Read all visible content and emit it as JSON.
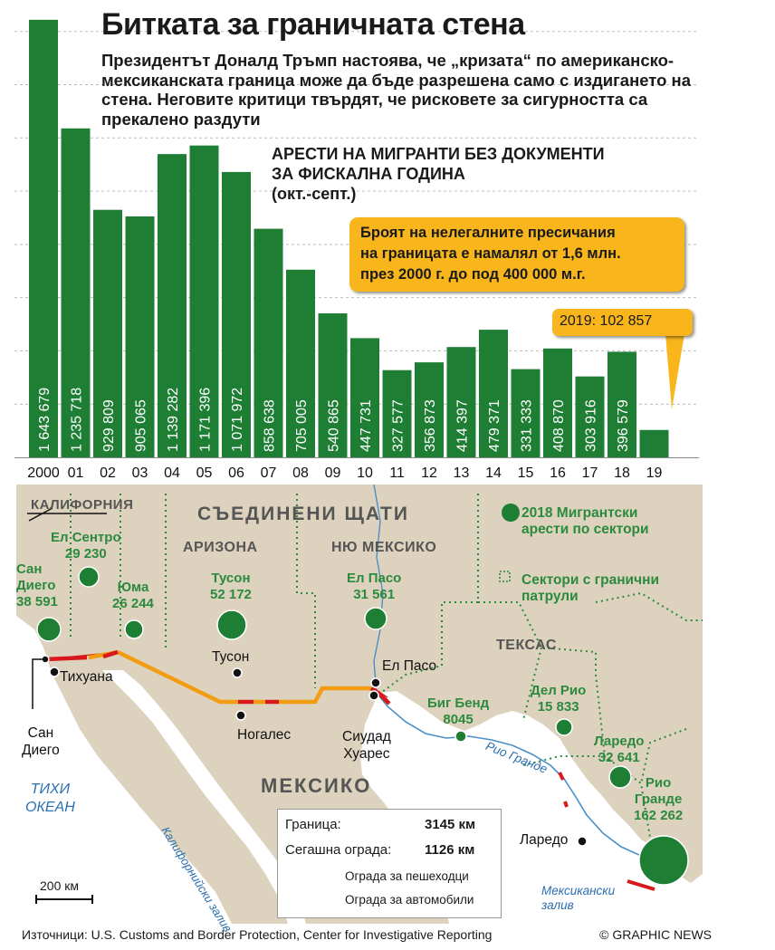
{
  "header": {
    "title": "Битката за граничната стена",
    "subtitle": "Президентът Доналд Тръмп настоява, че „кризата“ по американско-мексиканската граница може да бъде разрешена само с издигането на стена. Неговите критици твърдят, че рисковете за сигурността са прекалено раздути"
  },
  "chart_data": {
    "type": "bar",
    "title": "АРЕСТИ НА МИГРАНТИ БЕЗ ДОКУМЕНТИ ЗА ФИСКАЛНА ГОДИНА (окт.-септ.)",
    "title_lines": [
      "АРЕСТИ НА МИГРАНТИ БЕЗ ДОКУМЕНТИ",
      "ЗА ФИСКАЛНА ГОДИНА",
      "(окт.-септ.)"
    ],
    "categories": [
      "2000",
      "01",
      "02",
      "03",
      "04",
      "05",
      "06",
      "07",
      "08",
      "09",
      "10",
      "11",
      "12",
      "13",
      "14",
      "15",
      "16",
      "17",
      "18",
      "19"
    ],
    "values": [
      1643679,
      1235718,
      929809,
      905065,
      1139282,
      1171396,
      1071972,
      858638,
      705005,
      540865,
      447731,
      327577,
      356873,
      414397,
      479371,
      331333,
      408870,
      303916,
      396579,
      102857
    ],
    "value_labels": [
      "1 643 679",
      "1 235 718",
      "929 809",
      "905 065",
      "1 139 282",
      "1 171 396",
      "1 071 972",
      "858 638",
      "705 005",
      "540 865",
      "447 731",
      "327 577",
      "356 873",
      "414 397",
      "479 371",
      "331 333",
      "408 870",
      "303 916",
      "396 579",
      ""
    ],
    "ylim": [
      0,
      1650000
    ],
    "grid": true,
    "bar_color": "#1e7e34",
    "annotations": [
      "Броят на нелегалните пресичания на границата е намалял от 1,6 млн. през 2000 г. до под 400 000 м.г.",
      "2019: 102 857"
    ]
  },
  "callout": {
    "lines": [
      "Броят на нелегалните пресичания",
      "на границата е намалял от 1,6 млн.",
      "през 2000 г. до под 400 000 м.г."
    ]
  },
  "callout2": {
    "text": "2019: 102 857"
  },
  "map": {
    "regions": {
      "california": "КАЛИФОРНИЯ",
      "usa": "СЪЕДИНЕНИ ЩАТИ",
      "arizona": "АРИЗОНА",
      "new_mexico": "НЮ МЕКСИКО",
      "texas": "ТЕКСАС",
      "mexico": "МЕКСИКО",
      "pacific_line1": "ТИХИ",
      "pacific_line2": "ОКЕАН",
      "gulf_california": "Калифорнийски залив",
      "gulf_mexico_line1": "Мексикански",
      "gulf_mexico_line2": "залив",
      "rio_grande_river": "Рио Гранде"
    },
    "sectors": [
      {
        "name_lines": [
          "Ел Сентро"
        ],
        "value": "29 230"
      },
      {
        "name_lines": [
          "Сан",
          "Диего"
        ],
        "value": "38 591"
      },
      {
        "name_lines": [
          "Юма"
        ],
        "value": "26 244"
      },
      {
        "name_lines": [
          "Тусон"
        ],
        "value": "52 172"
      },
      {
        "name_lines": [
          "Ел Пасо"
        ],
        "value": "31 561"
      },
      {
        "name_lines": [
          "Биг Бенд"
        ],
        "value": "8045"
      },
      {
        "name_lines": [
          "Дел Рио"
        ],
        "value": "15 833"
      },
      {
        "name_lines": [
          "Ларедо"
        ],
        "value": "32 641"
      },
      {
        "name_lines": [
          "Рио",
          "Гранде"
        ],
        "value": "162 262"
      }
    ],
    "cities": {
      "tijuana": "Тихуана",
      "tucson": "Тусон",
      "nogales": "Ногалес",
      "el_paso": "Ел Пасо",
      "juarez_line1": "Сиудад",
      "juarez_line2": "Хуарес",
      "san_diego_line1": "Сан",
      "san_diego_line2": "Диего",
      "laredo": "Ларедо"
    },
    "legend_circle": "2018 Мигрантски арести по сектори",
    "legend_circle_lines": [
      "2018 Мигрантски",
      "арести по сектори"
    ],
    "legend_sector_lines": [
      "Сектори с гранични",
      "патрули"
    ],
    "scale": "200 км",
    "border_box": {
      "border_label": "Граница:",
      "border_value": "3145 км",
      "fence_label": "Сегашна ограда:",
      "fence_value": "1126 км",
      "pedestrian": "Ограда за пешеходци",
      "vehicle": "Ограда за автомобили"
    },
    "colors": {
      "land": "#ddd2bd",
      "water": "#ffffff",
      "sector_green": "#1e7e34",
      "pedestrian_fence": "#d7191c",
      "vehicle_fence": "#f39c12"
    }
  },
  "footer": {
    "sources": "Източници: U.S. Customs and Border Protection, Center for Investigative Reporting",
    "credit": "© GRAPHIC NEWS"
  }
}
